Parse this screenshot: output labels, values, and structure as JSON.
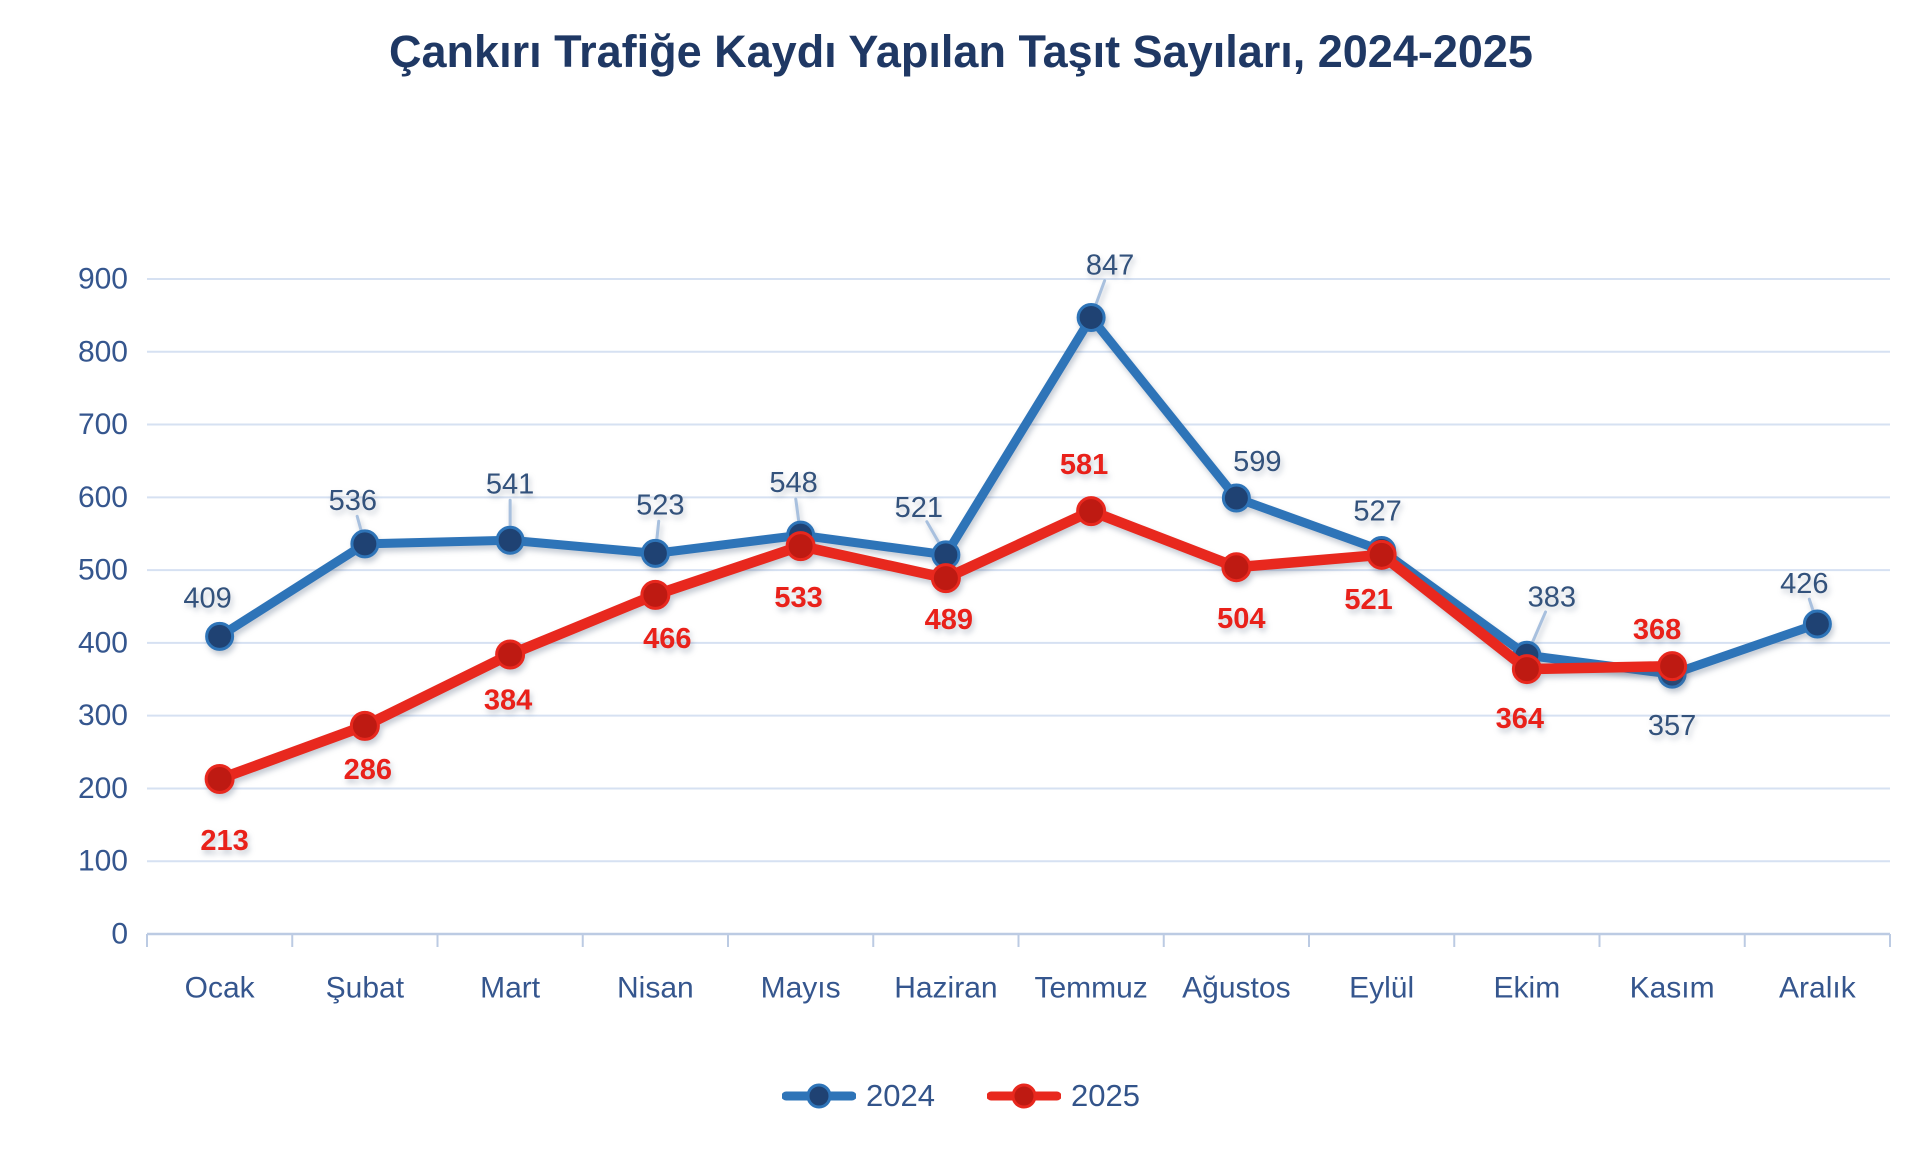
{
  "chart_data": {
    "type": "line",
    "title": "Çankırı Trafiğe Kaydı Yapılan Taşıt Sayıları, 2024-2025",
    "categories": [
      "Ocak",
      "Şubat",
      "Mart",
      "Nisan",
      "Mayıs",
      "Haziran",
      "Temmuz",
      "Ağustos",
      "Eylül",
      "Ekim",
      "Kasım",
      "Aralık"
    ],
    "y_axis": {
      "min": 0,
      "max": 900,
      "step": 100,
      "ticks": [
        0,
        100,
        200,
        300,
        400,
        500,
        600,
        700,
        800,
        900
      ]
    },
    "grid": true,
    "legend_position": "bottom",
    "series": [
      {
        "name": "2024",
        "color": "#2E74B8",
        "marker_color": "#1F4273",
        "label_color": "#33527C",
        "label_bold": false,
        "line_width": 9,
        "marker_radius": 13,
        "values": [
          409,
          536,
          541,
          523,
          548,
          521,
          847,
          599,
          527,
          383,
          357,
          426
        ],
        "label_offsets": [
          [
            -12,
            -38
          ],
          [
            -12,
            -43
          ],
          [
            0,
            -56
          ],
          [
            5,
            -48
          ],
          [
            -7,
            -52
          ],
          [
            -27,
            -47
          ],
          [
            19,
            -52
          ],
          [
            21,
            -36
          ],
          [
            -4,
            -39
          ],
          [
            25,
            -58
          ],
          [
            0,
            52
          ],
          [
            -13,
            -40
          ]
        ],
        "label_leaders": [
          false,
          true,
          true,
          true,
          true,
          true,
          true,
          false,
          false,
          true,
          false,
          true
        ]
      },
      {
        "name": "2025",
        "color": "#E8281E",
        "marker_color": "#BE1A12",
        "label_color": "#E9211A",
        "label_bold": true,
        "line_width": 10.5,
        "marker_radius": 13.5,
        "values": [
          213,
          286,
          384,
          466,
          533,
          489,
          581,
          504,
          521,
          364,
          368
        ],
        "label_offsets": [
          [
            5,
            62
          ],
          [
            3,
            44
          ],
          [
            -2,
            46
          ],
          [
            12,
            44
          ],
          [
            -2,
            52
          ],
          [
            3,
            42
          ],
          [
            -7,
            -46
          ],
          [
            5,
            52
          ],
          [
            -13,
            45
          ],
          [
            -7,
            50
          ],
          [
            -15,
            -36
          ]
        ],
        "label_leaders": [
          false,
          false,
          false,
          false,
          false,
          false,
          false,
          false,
          false,
          false,
          false
        ]
      }
    ]
  },
  "colors": {
    "bg": "#ffffff",
    "title": "#1F3864",
    "axis-text": "#35568E",
    "grid": "#D6E1F2",
    "axis-line": "#BCCBE3",
    "leader": "#A8C0DE",
    "legend-text": "#33548A"
  }
}
